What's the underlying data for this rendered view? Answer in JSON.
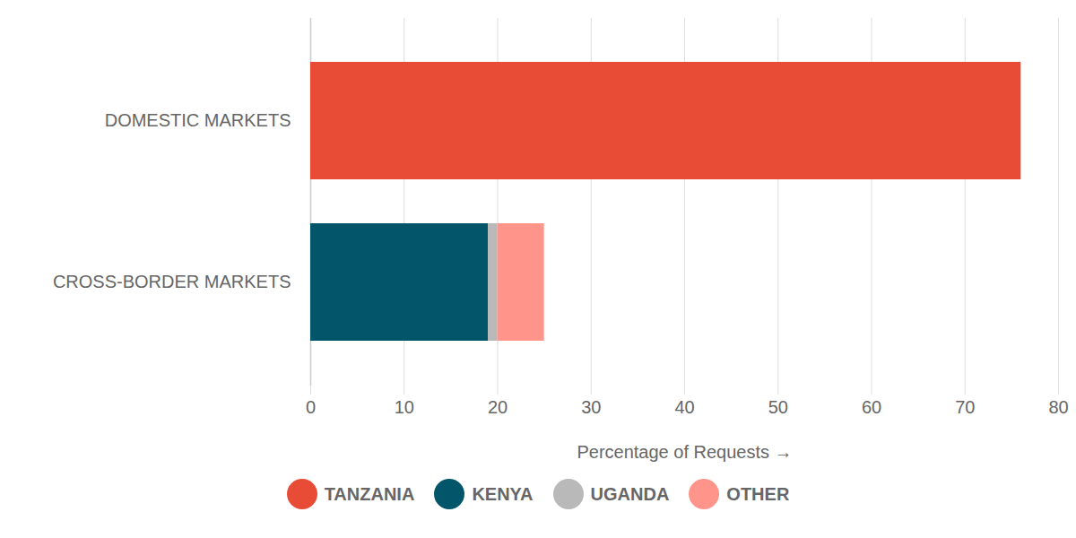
{
  "chart_data": {
    "type": "bar",
    "orientation": "horizontal",
    "stacked": true,
    "categories": [
      "DOMESTIC MARKETS",
      "CROSS-BORDER MARKETS"
    ],
    "series": [
      {
        "name": "TANZANIA",
        "color": "#e84c36",
        "values": [
          76,
          0
        ]
      },
      {
        "name": "KENYA",
        "color": "#03566a",
        "values": [
          0,
          19
        ]
      },
      {
        "name": "UGANDA",
        "color": "#b9b9b9",
        "values": [
          0,
          1
        ]
      },
      {
        "name": "OTHER",
        "color": "#ff958a",
        "values": [
          0,
          5
        ]
      }
    ],
    "x_label": "Percentage of Requests",
    "xlim": [
      0,
      80
    ],
    "xticks": [
      0,
      10,
      20,
      30,
      40,
      50,
      60,
      70,
      80
    ],
    "grid": true,
    "legend": "bottom"
  }
}
